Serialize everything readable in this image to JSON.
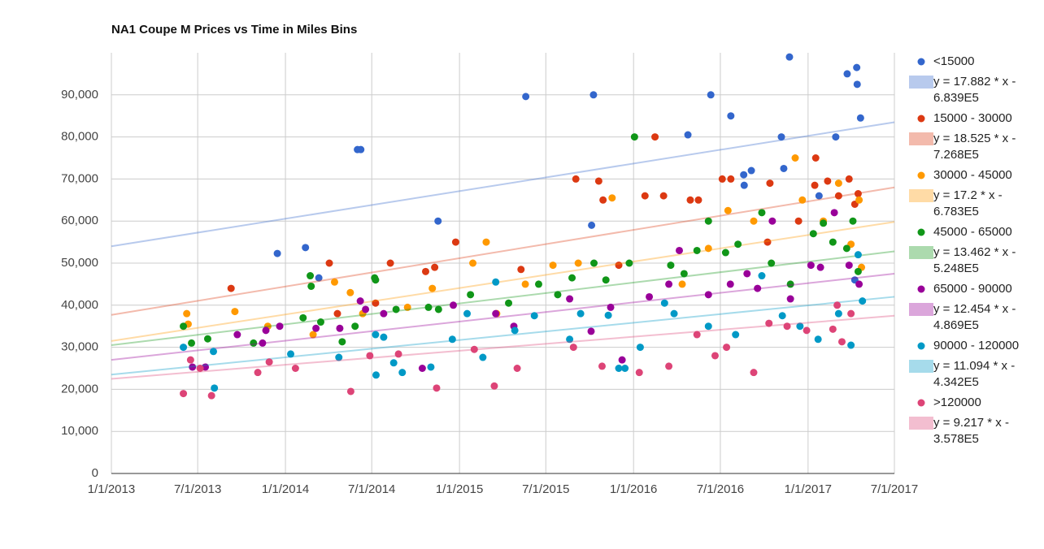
{
  "chart_data": {
    "type": "scatter",
    "title": "NA1 Coupe M Prices vs Time in Miles Bins",
    "xlim": [
      "1/1/2013",
      "7/1/2017"
    ],
    "xticks": [
      "1/1/2013",
      "7/1/2013",
      "1/1/2014",
      "7/1/2014",
      "1/1/2015",
      "7/1/2015",
      "1/1/2016",
      "7/1/2016",
      "1/1/2017",
      "7/1/2017"
    ],
    "ylim": [
      0,
      100000
    ],
    "yticks": [
      0,
      {
        "value": 10000,
        "label": "10,000"
      },
      {
        "value": 20000,
        "label": "20,000"
      },
      {
        "value": 30000,
        "label": "30,000"
      },
      {
        "value": 40000,
        "label": "40,000"
      },
      {
        "value": 50000,
        "label": "50,000"
      },
      {
        "value": 60000,
        "label": "60,000"
      },
      {
        "value": 70000,
        "label": "70,000"
      },
      {
        "value": 80000,
        "label": "80,000"
      },
      {
        "value": 90000,
        "label": "90,000"
      }
    ],
    "grid": true,
    "series": [
      {
        "name": "<15000",
        "color": "#3366cc",
        "x": [
          "12/15/2013",
          "2/12/2014",
          "3/12/2014",
          "6/1/2014",
          "6/8/2014",
          "11/17/2014",
          "5/20/2015",
          "10/5/2015",
          "10/9/2015",
          "4/24/2016",
          "6/11/2016",
          "7/23/2016",
          "8/19/2016",
          "8/20/2016",
          "9/4/2016",
          "11/6/2016",
          "11/11/2016",
          "11/23/2016",
          "1/24/2017",
          "2/28/2017",
          "3/24/2017",
          "4/9/2017",
          "4/13/2017",
          "4/14/2017",
          "4/21/2017"
        ],
        "values": [
          52300,
          53700,
          46500,
          77000,
          77000,
          60000,
          89600,
          59000,
          90000,
          80500,
          90000,
          85000,
          71000,
          68500,
          72000,
          80000,
          72500,
          99000,
          66000,
          80000,
          95000,
          46000,
          96500,
          92500,
          84500
        ],
        "trendline": {
          "name": "y = 17.882 * x - 6.839E5",
          "values": [
            54000,
            83500
          ]
        }
      },
      {
        "name": "15000 - 30000",
        "color": "#dc3912",
        "x": [
          "9/9/2013",
          "4/3/2014",
          "4/20/2014",
          "7/9/2014",
          "8/9/2014",
          "10/22/2014",
          "11/10/2014",
          "12/24/2014",
          "5/10/2015",
          "9/2/2015",
          "10/20/2015",
          "10/29/2015",
          "12/1/2015",
          "1/25/2016",
          "2/15/2016",
          "3/4/2016",
          "4/29/2016",
          "5/16/2016",
          "7/5/2016",
          "7/23/2016",
          "10/8/2016",
          "10/13/2016",
          "12/12/2016",
          "1/15/2017",
          "1/17/2017",
          "2/11/2017",
          "3/6/2017",
          "3/28/2017",
          "4/9/2017",
          "4/16/2017"
        ],
        "values": [
          44000,
          50000,
          38000,
          40500,
          50000,
          48000,
          49000,
          55000,
          48500,
          70000,
          69500,
          65000,
          49500,
          66000,
          80000,
          66000,
          65000,
          65000,
          70000,
          70000,
          55000,
          69000,
          60000,
          68500,
          75000,
          69500,
          66000,
          70000,
          64000,
          66500
        ],
        "trendline": {
          "name": "y = 18.525 * x - 7.268E5",
          "values": [
            37700,
            68000
          ]
        }
      },
      {
        "name": "30000 - 45000",
        "color": "#ff9900",
        "x": [
          "6/8/2013",
          "6/11/2013",
          "9/17/2013",
          "11/25/2013",
          "2/28/2014",
          "4/14/2014",
          "5/17/2014",
          "6/12/2014",
          "9/14/2014",
          "11/5/2014",
          "1/29/2015",
          "2/26/2015",
          "3/20/2015",
          "5/19/2015",
          "7/16/2015",
          "9/7/2015",
          "11/17/2015",
          "4/12/2016",
          "6/6/2016",
          "7/17/2016",
          "9/9/2016",
          "12/5/2016",
          "12/20/2016",
          "2/2/2017",
          "3/6/2017",
          "4/1/2017",
          "4/18/2017",
          "4/23/2017"
        ],
        "values": [
          38000,
          35500,
          38500,
          35000,
          33000,
          45500,
          43000,
          38000,
          39500,
          44000,
          50000,
          55000,
          38000,
          45000,
          49500,
          50000,
          65500,
          45000,
          53500,
          62500,
          60000,
          75000,
          65000,
          60000,
          69000,
          54500,
          65000,
          49000
        ],
        "trendline": {
          "name": "y = 17.2 * x - 6.783E5",
          "values": [
            31500,
            59800
          ]
        }
      },
      {
        "name": "45000 - 65000",
        "color": "#109618",
        "x": [
          "6/1/2013",
          "6/18/2013",
          "7/22/2013",
          "10/26/2013",
          "2/7/2014",
          "2/22/2014",
          "2/24/2014",
          "3/16/2014",
          "4/30/2014",
          "5/27/2014",
          "7/7/2014",
          "7/9/2014",
          "8/21/2014",
          "10/28/2014",
          "11/18/2014",
          "1/24/2015",
          "4/14/2015",
          "6/16/2015",
          "7/26/2015",
          "8/25/2015",
          "10/10/2015",
          "11/4/2015",
          "12/23/2015",
          "1/3/2016",
          "3/19/2016",
          "4/16/2016",
          "5/13/2016",
          "6/6/2016",
          "7/12/2016",
          "8/7/2016",
          "9/26/2016",
          "10/16/2016",
          "11/25/2016",
          "1/12/2017",
          "2/2/2017",
          "2/22/2017",
          "3/23/2017",
          "4/5/2017",
          "4/16/2017"
        ],
        "values": [
          35000,
          31000,
          32000,
          31000,
          37000,
          47000,
          44500,
          36000,
          31300,
          35000,
          46500,
          46000,
          39000,
          39500,
          39000,
          42500,
          40500,
          45000,
          42500,
          46500,
          50000,
          46000,
          50000,
          80000,
          49500,
          47500,
          53000,
          60000,
          52500,
          54500,
          62000,
          50000,
          45000,
          57000,
          59500,
          55000,
          53500,
          60000,
          48000
        ],
        "trendline": {
          "name": "y = 13.462 * x - 5.248E5",
          "values": [
            30500,
            52800
          ]
        }
      },
      {
        "name": "65000 - 90000",
        "color": "#990099",
        "x": [
          "6/20/2013",
          "7/17/2013",
          "9/22/2013",
          "11/14/2013",
          "11/21/2013",
          "12/20/2013",
          "3/6/2014",
          "4/25/2014",
          "6/7/2014",
          "6/18/2014",
          "7/26/2014",
          "10/15/2014",
          "12/19/2014",
          "3/18/2015",
          "4/25/2015",
          "8/20/2015",
          "10/4/2015",
          "11/14/2015",
          "12/8/2015",
          "2/3/2016",
          "3/15/2016",
          "4/6/2016",
          "6/6/2016",
          "7/22/2016",
          "8/26/2016",
          "9/17/2016",
          "10/18/2016",
          "11/25/2016",
          "1/7/2017",
          "1/27/2017",
          "2/25/2017",
          "3/28/2017",
          "4/18/2017"
        ],
        "values": [
          25300,
          25300,
          33000,
          31000,
          34000,
          35000,
          34500,
          34500,
          41000,
          39000,
          38000,
          25000,
          40000,
          38000,
          35000,
          41500,
          33800,
          39500,
          27000,
          42000,
          45000,
          53000,
          42500,
          45000,
          47500,
          44000,
          60000,
          41500,
          49500,
          49000,
          62000,
          49500,
          45000
        ],
        "trendline": {
          "name": "y = 12.454 * x - 4.869E5",
          "values": [
            27000,
            47500
          ]
        }
      },
      {
        "name": "90000 - 120000",
        "color": "#0099c6",
        "x": [
          "6/1/2013",
          "8/3/2013",
          "8/5/2013",
          "1/12/2014",
          "4/23/2014",
          "7/9/2014",
          "7/10/2014",
          "7/26/2014",
          "8/16/2014",
          "9/3/2014",
          "11/2/2014",
          "12/17/2014",
          "1/17/2015",
          "2/19/2015",
          "3/18/2015",
          "4/27/2015",
          "6/7/2015",
          "8/20/2015",
          "9/12/2015",
          "11/9/2015",
          "12/1/2015",
          "12/14/2015",
          "1/15/2016",
          "3/6/2016",
          "3/26/2016",
          "6/6/2016",
          "8/2/2016",
          "9/26/2016",
          "11/8/2016",
          "12/15/2016",
          "1/22/2017",
          "3/6/2017",
          "4/1/2017",
          "4/16/2017",
          "4/25/2017"
        ],
        "values": [
          30000,
          29000,
          20300,
          28400,
          27600,
          33000,
          23400,
          32400,
          26300,
          24000,
          25300,
          31900,
          38000,
          27600,
          45500,
          34000,
          37500,
          31900,
          38000,
          37600,
          25000,
          25000,
          30000,
          40500,
          38000,
          35000,
          33000,
          47000,
          37500,
          35000,
          31900,
          38000,
          30500,
          52000,
          41000
        ],
        "trendline": {
          "name": "y = 11.094 * x - 4.342E5",
          "values": [
            23500,
            42000
          ]
        }
      },
      {
        "name": ">120000",
        "color": "#dd4477",
        "x": [
          "6/1/2013",
          "6/16/2013",
          "7/6/2013",
          "7/30/2013",
          "11/4/2013",
          "11/28/2013",
          "1/22/2014",
          "5/18/2014",
          "6/27/2014",
          "8/26/2014",
          "11/14/2014",
          "2/1/2015",
          "3/15/2015",
          "5/2/2015",
          "8/28/2015",
          "10/27/2015",
          "1/13/2016",
          "3/15/2016",
          "5/13/2016",
          "6/20/2016",
          "7/14/2016",
          "9/9/2016",
          "10/11/2016",
          "11/18/2016",
          "12/29/2016",
          "2/22/2017",
          "3/3/2017",
          "3/13/2017",
          "4/1/2017"
        ],
        "values": [
          19000,
          27000,
          25000,
          18500,
          24000,
          26500,
          25000,
          19500,
          28000,
          28400,
          20300,
          29500,
          20800,
          25000,
          30000,
          25500,
          24000,
          25500,
          33000,
          28000,
          30000,
          24000,
          35700,
          35000,
          34000,
          34300,
          40000,
          31300,
          38000
        ],
        "trendline": {
          "name": "y = 9.217 * x - 3.578E5",
          "values": [
            22500,
            37500
          ]
        }
      }
    ]
  }
}
